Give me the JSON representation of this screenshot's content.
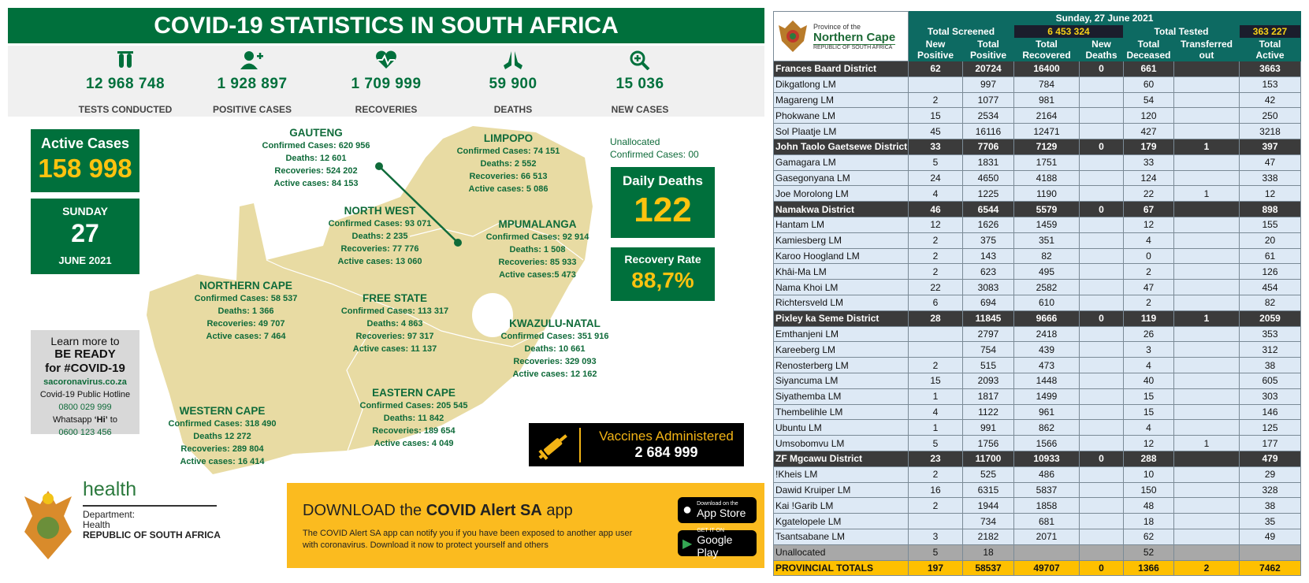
{
  "title": "COVID-19 STATISTICS IN SOUTH AFRICA",
  "stats": [
    {
      "icon": "test-tubes-icon",
      "value": "12 968 748",
      "label": "TESTS CONDUCTED"
    },
    {
      "icon": "add-user-icon",
      "value": "1  928 897",
      "label": "POSITIVE CASES"
    },
    {
      "icon": "heartbeat-icon",
      "value": "1 709 999",
      "label": "RECOVERIES"
    },
    {
      "icon": "praying-hands-icon",
      "value": "59 900",
      "label": "DEATHS"
    },
    {
      "icon": "zoom-plus-icon",
      "value": "15 036",
      "label": "NEW CASES"
    }
  ],
  "active": {
    "label": "Active Cases",
    "value": "158 998"
  },
  "date": {
    "day": "SUNDAY",
    "num": "27",
    "month": "JUNE 2021"
  },
  "unallocated": {
    "line1": "Unallocated",
    "line2": "Confirmed Cases: 00"
  },
  "daily_deaths": {
    "label": "Daily Deaths",
    "value": "122"
  },
  "recovery": {
    "label": "Recovery Rate",
    "value": "88,7%"
  },
  "provinces": [
    {
      "key": "gauteng",
      "name": "GAUTENG",
      "lines": [
        "Confirmed Cases:   620 956",
        "Deaths: 12 601",
        "Recoveries: 524 202",
        "Active cases: 84 153"
      ]
    },
    {
      "key": "limpopo",
      "name": "LIMPOPO",
      "lines": [
        "Confirmed Cases: 74 151",
        "Deaths: 2 552",
        "Recoveries: 66 513",
        "Active cases: 5 086"
      ]
    },
    {
      "key": "north-west",
      "name": "NORTH WEST",
      "lines": [
        "Confirmed Cases: 93 071",
        "Deaths: 2 235",
        "Recoveries: 77 776",
        "Active cases: 13 060"
      ]
    },
    {
      "key": "mpumalanga",
      "name": "MPUMALANGA",
      "lines": [
        "Confirmed Cases: 92 914",
        "Deaths:  1 508",
        "Recoveries: 85 933",
        "Active cases:5 473"
      ]
    },
    {
      "key": "northern-cape",
      "name": "NORTHERN CAPE",
      "lines": [
        "Confirmed Cases: 58 537",
        "Deaths: 1 366",
        "Recoveries: 49 707",
        "Active cases: 7 464"
      ]
    },
    {
      "key": "free-state",
      "name": "FREE STATE",
      "lines": [
        "Confirmed Cases: 113 317",
        "Deaths: 4 863",
        "Recoveries:  97 317",
        "Active cases: 11 137"
      ]
    },
    {
      "key": "kwazulu-natal",
      "name": "KWAZULU-NATAL",
      "lines": [
        "Confirmed Cases: 351 916",
        "Deaths: 10 661",
        "Recoveries: 329 093",
        "Active cases: 12 162"
      ]
    },
    {
      "key": "western-cape",
      "name": "WESTERN CAPE",
      "lines": [
        "Confirmed Cases: 318 490",
        "Deaths 12 272",
        "Recoveries: 289 804",
        "Active cases: 16 414"
      ]
    },
    {
      "key": "eastern-cape",
      "name": "EASTERN CAPE",
      "lines": [
        "Confirmed Cases: 205 545",
        "Deaths: 11 842",
        "Recoveries: 189 654",
        "Active cases: 4 049"
      ]
    }
  ],
  "learn": {
    "l1": "Learn more to",
    "l2": "BE READY",
    "l3": "for #COVID-19",
    "site": "sacoronavirus.co.za",
    "hotline_label": "Covid-19 Public Hotline",
    "hotline": "0800 029 999",
    "wa_pre": "Whatsapp ",
    "wa_hi": "‘Hi’",
    "wa_post": " to",
    "wa_num": "0600 123 456"
  },
  "vaccines": {
    "label": "Vaccines Administered",
    "value": "2 684 999"
  },
  "download": {
    "pre": "DOWNLOAD the ",
    "app": "COVID Alert SA",
    "post": " app",
    "body": "The COVID Alert SA app can notify you if you have been exposed to another app user with coronavirus. Download it now to protect yourself and others",
    "appstore_small": "Download on the",
    "appstore": "App Store",
    "play_small": "GET IT ON",
    "play": "Google Play"
  },
  "health": {
    "word": "health",
    "dept": "Department:",
    "dept2": "Health",
    "rsa": "REPUBLIC OF SOUTH AFRICA"
  },
  "colors": {
    "green": "#00703c",
    "yellow": "#fec30f",
    "map": "#e8dba3",
    "teal": "#0d6a62",
    "total": "#fec000"
  },
  "table": {
    "logo": {
      "l1": "Province of the",
      "l2": "Northern Cape",
      "l3": "REPUBLIC OF SOUTH AFRICA"
    },
    "date": "Sunday, 27 June 2021",
    "screened_label": "Total Screened",
    "screened": "6 453 324",
    "tested_label": "Total Tested",
    "tested": "363 227",
    "columns": [
      [
        "New",
        "Positive"
      ],
      [
        "Total",
        "Positive"
      ],
      [
        "Total",
        "Recovered"
      ],
      [
        "New",
        "Deaths"
      ],
      [
        "Total",
        "Deceased"
      ],
      [
        "Transferred",
        "out"
      ],
      [
        "Total",
        "Active"
      ]
    ],
    "rows": [
      {
        "t": "dist",
        "c": [
          "Frances Baard District",
          "62",
          "20724",
          "16400",
          "0",
          "661",
          "",
          "3663"
        ]
      },
      {
        "t": "lm",
        "c": [
          "Dikgatlong LM",
          "",
          "997",
          "784",
          "",
          "60",
          "",
          "153"
        ]
      },
      {
        "t": "lm",
        "c": [
          "Magareng LM",
          "2",
          "1077",
          "981",
          "",
          "54",
          "",
          "42"
        ]
      },
      {
        "t": "lm",
        "c": [
          "Phokwane LM",
          "15",
          "2534",
          "2164",
          "",
          "120",
          "",
          "250"
        ]
      },
      {
        "t": "lm",
        "c": [
          "Sol Plaatje LM",
          "45",
          "16116",
          "12471",
          "",
          "427",
          "",
          "3218"
        ]
      },
      {
        "t": "dist",
        "c": [
          "John Taolo Gaetsewe District",
          "33",
          "7706",
          "7129",
          "0",
          "179",
          "1",
          "397"
        ]
      },
      {
        "t": "lm",
        "c": [
          "Gamagara LM",
          "5",
          "1831",
          "1751",
          "",
          "33",
          "",
          "47"
        ]
      },
      {
        "t": "lm",
        "c": [
          "Gasegonyana LM",
          "24",
          "4650",
          "4188",
          "",
          "124",
          "",
          "338"
        ]
      },
      {
        "t": "lm",
        "c": [
          "Joe Morolong LM",
          "4",
          "1225",
          "1190",
          "",
          "22",
          "1",
          "12"
        ]
      },
      {
        "t": "dist",
        "c": [
          "Namakwa District",
          "46",
          "6544",
          "5579",
          "0",
          "67",
          "",
          "898"
        ]
      },
      {
        "t": "lm",
        "c": [
          "Hantam LM",
          "12",
          "1626",
          "1459",
          "",
          "12",
          "",
          "155"
        ]
      },
      {
        "t": "lm",
        "c": [
          "Kamiesberg LM",
          "2",
          "375",
          "351",
          "",
          "4",
          "",
          "20"
        ]
      },
      {
        "t": "lm",
        "c": [
          "Karoo Hoogland LM",
          "2",
          "143",
          "82",
          "",
          "0",
          "",
          "61"
        ]
      },
      {
        "t": "lm",
        "c": [
          "Khâi-Ma LM",
          "2",
          "623",
          "495",
          "",
          "2",
          "",
          "126"
        ]
      },
      {
        "t": "lm",
        "c": [
          "Nama Khoi LM",
          "22",
          "3083",
          "2582",
          "",
          "47",
          "",
          "454"
        ]
      },
      {
        "t": "lm",
        "c": [
          "Richtersveld LM",
          "6",
          "694",
          "610",
          "",
          "2",
          "",
          "82"
        ]
      },
      {
        "t": "dist",
        "c": [
          "Pixley ka Seme District",
          "28",
          "11845",
          "9666",
          "0",
          "119",
          "1",
          "2059"
        ]
      },
      {
        "t": "lm",
        "c": [
          "Emthanjeni LM",
          "",
          "2797",
          "2418",
          "",
          "26",
          "",
          "353"
        ]
      },
      {
        "t": "lm",
        "c": [
          "Kareeberg LM",
          "",
          "754",
          "439",
          "",
          "3",
          "",
          "312"
        ]
      },
      {
        "t": "lm",
        "c": [
          "Renosterberg LM",
          "2",
          "515",
          "473",
          "",
          "4",
          "",
          "38"
        ]
      },
      {
        "t": "lm",
        "c": [
          "Siyancuma LM",
          "15",
          "2093",
          "1448",
          "",
          "40",
          "",
          "605"
        ]
      },
      {
        "t": "lm",
        "c": [
          "Siyathemba LM",
          "1",
          "1817",
          "1499",
          "",
          "15",
          "",
          "303"
        ]
      },
      {
        "t": "lm",
        "c": [
          "Thembelihle LM",
          "4",
          "1122",
          "961",
          "",
          "15",
          "",
          "146"
        ]
      },
      {
        "t": "lm",
        "c": [
          "Ubuntu LM",
          "1",
          "991",
          "862",
          "",
          "4",
          "",
          "125"
        ]
      },
      {
        "t": "lm",
        "c": [
          "Umsobomvu LM",
          "5",
          "1756",
          "1566",
          "",
          "12",
          "1",
          "177"
        ]
      },
      {
        "t": "dist",
        "c": [
          "ZF Mgcawu District",
          "23",
          "11700",
          "10933",
          "0",
          "288",
          "",
          "479"
        ]
      },
      {
        "t": "lm",
        "c": [
          "!Kheis LM",
          "2",
          "525",
          "486",
          "",
          "10",
          "",
          "29"
        ]
      },
      {
        "t": "lm",
        "c": [
          "Dawid Kruiper LM",
          "16",
          "6315",
          "5837",
          "",
          "150",
          "",
          "328"
        ]
      },
      {
        "t": "lm",
        "c": [
          "Kai !Garib LM",
          "2",
          "1944",
          "1858",
          "",
          "48",
          "",
          "38"
        ]
      },
      {
        "t": "lm",
        "c": [
          "Kgatelopele LM",
          "",
          "734",
          "681",
          "",
          "18",
          "",
          "35"
        ]
      },
      {
        "t": "lm",
        "c": [
          "Tsantsabane LM",
          "3",
          "2182",
          "2071",
          "",
          "62",
          "",
          "49"
        ]
      },
      {
        "t": "unal",
        "c": [
          "Unallocated",
          "5",
          "18",
          "",
          "",
          "52",
          "",
          ""
        ]
      },
      {
        "t": "tot",
        "c": [
          "PROVINCIAL TOTALS",
          "197",
          "58537",
          "49707",
          "0",
          "1366",
          "2",
          "7462"
        ]
      }
    ]
  }
}
